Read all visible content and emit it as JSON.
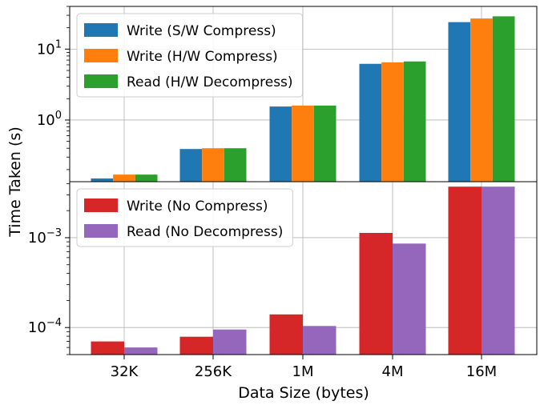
{
  "figure": {
    "ylabel": "Time Taken (s)",
    "xlabel": "Data Size (bytes)"
  },
  "chart_data": [
    {
      "type": "bar",
      "scale": "log",
      "categories": [
        "32K",
        "256K",
        "1M",
        "4M",
        "16M"
      ],
      "series": [
        {
          "name": "Write (S/W Compress)",
          "color": "#1f77b4",
          "values": [
            0.15,
            0.39,
            1.55,
            6.2,
            24
          ]
        },
        {
          "name": "Write (H/W Compress)",
          "color": "#ff7f0e",
          "values": [
            0.17,
            0.4,
            1.6,
            6.5,
            27
          ]
        },
        {
          "name": "Read (H/W Decompress)",
          "color": "#2ca02c",
          "values": [
            0.17,
            0.4,
            1.6,
            6.7,
            29
          ]
        }
      ],
      "yticks": [
        {
          "value": 1,
          "label": "10^0"
        },
        {
          "value": 10,
          "label": "10^1"
        }
      ],
      "ylim": [
        0.135,
        40
      ],
      "grid": true,
      "legend": "upper-left"
    },
    {
      "type": "bar",
      "scale": "log",
      "categories": [
        "32K",
        "256K",
        "1M",
        "4M",
        "16M"
      ],
      "series": [
        {
          "name": "Write (No Compress)",
          "color": "#d62728",
          "values": [
            7e-05,
            7.9e-05,
            0.00014,
            0.00113,
            0.0037
          ]
        },
        {
          "name": "Read (No Decompress)",
          "color": "#9467bd",
          "values": [
            6e-05,
            9.5e-05,
            0.000104,
            0.00086,
            0.0037
          ]
        }
      ],
      "yticks": [
        {
          "value": 0.0001,
          "label": "10^-4"
        },
        {
          "value": 0.001,
          "label": "10^-3"
        }
      ],
      "ylim": [
        5e-05,
        0.0042
      ],
      "grid": true,
      "legend": "upper-left"
    }
  ]
}
